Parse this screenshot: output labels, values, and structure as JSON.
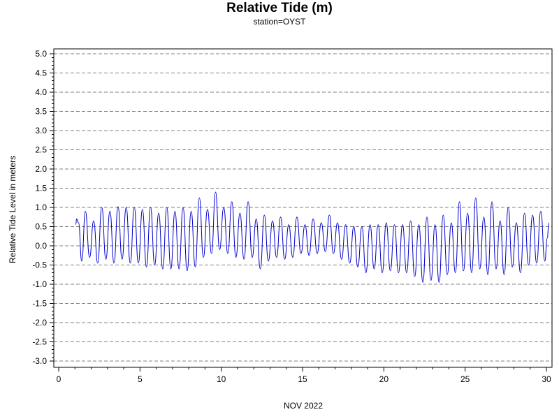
{
  "chart_data": {
    "type": "line",
    "title": "Relative Tide (m)",
    "subtitle": "station=OYST",
    "xlabel": "NOV 2022",
    "ylabel": "Relative Tide Level in meters",
    "xlim": [
      0,
      30
    ],
    "ylim": [
      -3.0,
      5.0
    ],
    "x_ticks": [
      0,
      5,
      10,
      15,
      20,
      25,
      30
    ],
    "y_ticks": [
      5.0,
      4.5,
      4.0,
      3.5,
      3.0,
      2.5,
      2.0,
      1.5,
      1.0,
      0.5,
      0.0,
      -0.5,
      -1.0,
      -1.5,
      -2.0,
      -2.5,
      -3.0
    ],
    "y_tick_labels": [
      "5.0",
      "4.5",
      "4.0",
      "3.5",
      "3.0",
      "2.5",
      "2.0",
      "1.5",
      "1.0",
      "0.5",
      "0.0",
      "-0.5",
      "-1.0",
      "-1.5",
      "-2.0",
      "-2.5",
      "-3.0"
    ],
    "gridlines": "horizontal dashed at whole meters",
    "series": [
      {
        "color": "#0000cc",
        "points": [
          [
            1.05,
            0.55
          ],
          [
            1.1,
            0.7
          ],
          [
            1.22,
            0.6
          ],
          [
            1.42,
            -0.4
          ],
          [
            1.64,
            0.9
          ],
          [
            1.9,
            -0.3
          ],
          [
            2.15,
            0.65
          ],
          [
            2.4,
            -0.45
          ],
          [
            2.65,
            1.0
          ],
          [
            2.9,
            -0.35
          ],
          [
            3.15,
            0.9
          ],
          [
            3.4,
            -0.45
          ],
          [
            3.65,
            1.02
          ],
          [
            3.9,
            -0.35
          ],
          [
            4.15,
            1.0
          ],
          [
            4.4,
            -0.45
          ],
          [
            4.65,
            1.0
          ],
          [
            4.9,
            -0.45
          ],
          [
            5.15,
            0.95
          ],
          [
            5.4,
            -0.55
          ],
          [
            5.65,
            1.0
          ],
          [
            5.9,
            -0.5
          ],
          [
            6.15,
            0.85
          ],
          [
            6.4,
            -0.6
          ],
          [
            6.65,
            1.0
          ],
          [
            6.9,
            -0.6
          ],
          [
            7.15,
            0.9
          ],
          [
            7.4,
            -0.6
          ],
          [
            7.65,
            1.0
          ],
          [
            7.9,
            -0.65
          ],
          [
            8.15,
            0.9
          ],
          [
            8.4,
            -0.55
          ],
          [
            8.65,
            1.25
          ],
          [
            8.9,
            -0.3
          ],
          [
            9.15,
            0.95
          ],
          [
            9.4,
            -0.2
          ],
          [
            9.65,
            1.4
          ],
          [
            9.9,
            -0.1
          ],
          [
            10.15,
            1.0
          ],
          [
            10.4,
            -0.2
          ],
          [
            10.65,
            1.15
          ],
          [
            10.9,
            -0.3
          ],
          [
            11.15,
            0.85
          ],
          [
            11.4,
            -0.35
          ],
          [
            11.65,
            1.15
          ],
          [
            11.9,
            -0.3
          ],
          [
            12.15,
            0.7
          ],
          [
            12.4,
            -0.6
          ],
          [
            12.65,
            0.8
          ],
          [
            12.9,
            -0.4
          ],
          [
            13.15,
            0.65
          ],
          [
            13.4,
            -0.3
          ],
          [
            13.65,
            0.75
          ],
          [
            13.9,
            -0.35
          ],
          [
            14.15,
            0.55
          ],
          [
            14.4,
            -0.3
          ],
          [
            14.65,
            0.75
          ],
          [
            14.9,
            -0.2
          ],
          [
            15.15,
            0.55
          ],
          [
            15.4,
            -0.25
          ],
          [
            15.65,
            0.7
          ],
          [
            15.9,
            -0.2
          ],
          [
            16.15,
            0.6
          ],
          [
            16.4,
            -0.15
          ],
          [
            16.65,
            0.8
          ],
          [
            16.9,
            -0.2
          ],
          [
            17.15,
            0.6
          ],
          [
            17.4,
            -0.35
          ],
          [
            17.65,
            0.55
          ],
          [
            17.9,
            -0.45
          ],
          [
            18.15,
            0.5
          ],
          [
            18.4,
            -0.55
          ],
          [
            18.65,
            0.5
          ],
          [
            18.9,
            -0.7
          ],
          [
            19.15,
            0.55
          ],
          [
            19.4,
            -0.6
          ],
          [
            19.65,
            0.55
          ],
          [
            19.9,
            -0.7
          ],
          [
            20.15,
            0.6
          ],
          [
            20.4,
            -0.65
          ],
          [
            20.65,
            0.55
          ],
          [
            20.9,
            -0.7
          ],
          [
            21.15,
            0.55
          ],
          [
            21.4,
            -0.7
          ],
          [
            21.65,
            0.65
          ],
          [
            21.9,
            -0.8
          ],
          [
            22.15,
            0.55
          ],
          [
            22.4,
            -0.95
          ],
          [
            22.65,
            0.75
          ],
          [
            22.9,
            -0.9
          ],
          [
            23.15,
            0.55
          ],
          [
            23.4,
            -0.95
          ],
          [
            23.65,
            0.8
          ],
          [
            23.9,
            -0.75
          ],
          [
            24.15,
            0.6
          ],
          [
            24.4,
            -0.7
          ],
          [
            24.65,
            1.15
          ],
          [
            24.9,
            -0.65
          ],
          [
            25.15,
            0.85
          ],
          [
            25.4,
            -0.7
          ],
          [
            25.65,
            1.25
          ],
          [
            25.9,
            -0.6
          ],
          [
            26.15,
            0.75
          ],
          [
            26.4,
            -0.75
          ],
          [
            26.65,
            1.15
          ],
          [
            26.9,
            -0.6
          ],
          [
            27.15,
            0.65
          ],
          [
            27.4,
            -0.75
          ],
          [
            27.65,
            1.0
          ],
          [
            27.9,
            -0.55
          ],
          [
            28.15,
            0.6
          ],
          [
            28.4,
            -0.7
          ],
          [
            28.65,
            0.85
          ],
          [
            28.9,
            -0.5
          ],
          [
            29.15,
            0.8
          ],
          [
            29.4,
            -0.45
          ],
          [
            29.65,
            0.9
          ],
          [
            29.9,
            -0.4
          ],
          [
            30.05,
            0.2
          ],
          [
            30.15,
            0.6
          ]
        ]
      }
    ]
  }
}
